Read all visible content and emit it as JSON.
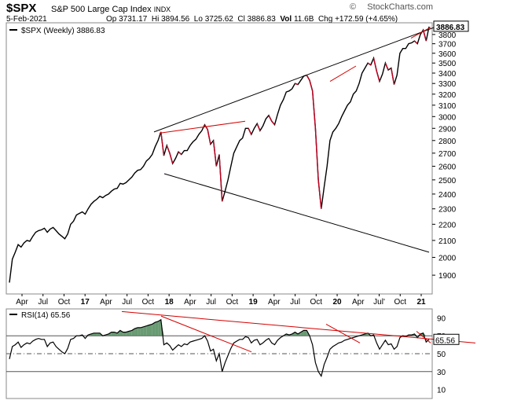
{
  "header": {
    "symbol": "$SPX",
    "name": "S&P 500 Large Cap Index",
    "exchange": "INDX",
    "brand": "StockCharts.com",
    "date": "5-Feb-2021",
    "ohlc": {
      "op_label": "Op",
      "op": "3731.17",
      "hi_label": "Hi",
      "hi": "3894.56",
      "lo_label": "Lo",
      "lo": "3725.62",
      "cl_label": "Cl",
      "cl": "3886.83",
      "vol_label": "Vol",
      "vol": "11.6B",
      "chg_label": "Chg",
      "chg": "+172.59 (+4.65%)"
    }
  },
  "chart_data": [
    {
      "type": "line",
      "legend": "$SPX (Weekly) 3886.83",
      "last_value_label": "3886.83",
      "y_axis": {
        "ticks": [
          1900,
          2000,
          2100,
          2200,
          2300,
          2400,
          2500,
          2600,
          2700,
          2800,
          2900,
          3000,
          3100,
          3200,
          3300,
          3400,
          3500,
          3600,
          3700,
          3800
        ],
        "ylim": [
          1800,
          3930
        ],
        "scale": "log"
      },
      "x_axis": {
        "tick_labels": [
          "Apr",
          "Jul",
          "Oct",
          "17",
          "Apr",
          "Jul",
          "Oct",
          "18",
          "Apr",
          "Jul",
          "Oct",
          "19",
          "Apr",
          "Jul",
          "Oct",
          "20",
          "Apr",
          "Jul'",
          "Oct",
          "21"
        ]
      },
      "series": [
        {
          "values": [
            1860,
            1990,
            2030,
            2075,
            2060,
            2085,
            2100,
            2095,
            2125,
            2150,
            2160,
            2165,
            2175,
            2150,
            2170,
            2180,
            2160,
            2140,
            2125,
            2110,
            2140,
            2200,
            2220,
            2260,
            2270,
            2280,
            2265,
            2300,
            2330,
            2350,
            2365,
            2385,
            2375,
            2390,
            2400,
            2420,
            2435,
            2440,
            2475,
            2470,
            2480,
            2500,
            2520,
            2550,
            2570,
            2575,
            2600,
            2640,
            2660,
            2690,
            2750,
            2800,
            2870,
            2680,
            2760,
            2700,
            2620,
            2660,
            2710,
            2690,
            2720,
            2720,
            2760,
            2790,
            2810,
            2850,
            2880,
            2930,
            2890,
            2770,
            2800,
            2600,
            2690,
            2350,
            2420,
            2500,
            2600,
            2700,
            2750,
            2800,
            2820,
            2900,
            2900,
            2850,
            2900,
            2940,
            2880,
            2920,
            2980,
            3010,
            2960,
            2930,
            3020,
            3100,
            3150,
            3220,
            3230,
            3250,
            3300,
            3290,
            3330,
            3370,
            3380,
            3330,
            3230,
            2900,
            2500,
            2300,
            2450,
            2600,
            2800,
            2870,
            2900,
            2940,
            3000,
            3050,
            3100,
            3130,
            3200,
            3230,
            3300,
            3400,
            3450,
            3500,
            3480,
            3550,
            3420,
            3320,
            3390,
            3500,
            3430,
            3450,
            3290,
            3380,
            3600,
            3650,
            3650,
            3700,
            3710,
            3730,
            3700,
            3800,
            3850,
            3730,
            3887
          ]
        }
      ],
      "annotations": [
        {
          "type": "trendline",
          "color": "#000000",
          "points": [
            [
              2870,
              "start-18"
            ],
            [
              3930,
              "end"
            ]
          ]
        },
        {
          "type": "trendline",
          "color": "#000000",
          "points": [
            [
              2540,
              "start-18"
            ],
            [
              2030,
              "end"
            ]
          ]
        },
        {
          "type": "trendline",
          "color": "#d40000",
          "label": "red resistance 2018"
        },
        {
          "type": "trendline",
          "color": "#d40000",
          "label": "red resistance 2020"
        },
        {
          "type": "trendline",
          "color": "#d40000",
          "label": "red resistance 2021"
        }
      ]
    },
    {
      "type": "line",
      "legend": "RSI(14) 65.56",
      "last_value_label": "65.56",
      "y_axis": {
        "ticks": [
          10,
          30,
          50,
          70,
          90
        ],
        "ylim": [
          0,
          100
        ],
        "reference_lines": [
          30,
          50,
          70
        ]
      },
      "series": [
        {
          "values": [
            44,
            58,
            60,
            63,
            57,
            60,
            62,
            61,
            64,
            66,
            67,
            66,
            66,
            58,
            62,
            63,
            58,
            55,
            52,
            50,
            56,
            66,
            67,
            70,
            70,
            71,
            67,
            71,
            72,
            73,
            73,
            73,
            70,
            71,
            72,
            74,
            74,
            73,
            76,
            74,
            74,
            75,
            76,
            78,
            79,
            79,
            80,
            81,
            82,
            83,
            85,
            86,
            88,
            60,
            62,
            59,
            54,
            57,
            60,
            58,
            61,
            60,
            63,
            64,
            65,
            66,
            67,
            70,
            64,
            53,
            55,
            42,
            50,
            30,
            40,
            48,
            56,
            62,
            64,
            66,
            66,
            69,
            68,
            62,
            65,
            66,
            60,
            62,
            65,
            67,
            62,
            60,
            65,
            68,
            70,
            72,
            71,
            72,
            74,
            72,
            74,
            76,
            76,
            70,
            60,
            40,
            30,
            25,
            38,
            46,
            55,
            58,
            60,
            62,
            63,
            65,
            66,
            67,
            68,
            69,
            70,
            71,
            72,
            73,
            70,
            71,
            62,
            55,
            60,
            65,
            60,
            61,
            55,
            58,
            68,
            70,
            69,
            71,
            71,
            72,
            68,
            72,
            73,
            63,
            66
          ]
        }
      ]
    }
  ]
}
